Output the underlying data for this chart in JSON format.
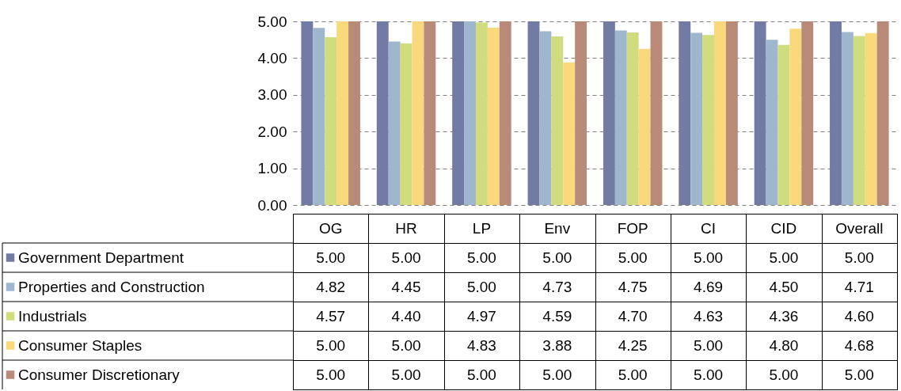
{
  "chart_data": {
    "type": "bar",
    "categories": [
      "OG",
      "HR",
      "LP",
      "Env",
      "FOP",
      "CI",
      "CID",
      "Overall"
    ],
    "series": [
      {
        "name": "Government Department",
        "color": "#717ba3",
        "values": [
          5.0,
          5.0,
          5.0,
          5.0,
          5.0,
          5.0,
          5.0,
          5.0
        ],
        "value_labels": [
          "5.00",
          "5.00",
          "5.00",
          "5.00",
          "5.00",
          "5.00",
          "5.00",
          "5.00"
        ]
      },
      {
        "name": "Properties and Construction",
        "color": "#9fb6cf",
        "values": [
          4.82,
          4.45,
          5.0,
          4.73,
          4.75,
          4.69,
          4.5,
          4.71
        ],
        "value_labels": [
          "4.82",
          "4.45",
          "5.00",
          "4.73",
          "4.75",
          "4.69",
          "4.50",
          "4.71"
        ]
      },
      {
        "name": "Industrials",
        "color": "#d0dc7e",
        "values": [
          4.57,
          4.4,
          4.97,
          4.59,
          4.7,
          4.63,
          4.36,
          4.6
        ],
        "value_labels": [
          "4.57",
          "4.40",
          "4.97",
          "4.59",
          "4.70",
          "4.63",
          "4.36",
          "4.60"
        ]
      },
      {
        "name": "Consumer Staples",
        "color": "#fad97c",
        "values": [
          5.0,
          5.0,
          4.83,
          3.88,
          4.25,
          5.0,
          4.8,
          4.68
        ],
        "value_labels": [
          "5.00",
          "5.00",
          "4.83",
          "3.88",
          "4.25",
          "5.00",
          "4.80",
          "4.68"
        ]
      },
      {
        "name": "Consumer Discretionary",
        "color": "#b98a78",
        "values": [
          5.0,
          5.0,
          5.0,
          5.0,
          5.0,
          5.0,
          5.0,
          5.0
        ],
        "value_labels": [
          "5.00",
          "5.00",
          "5.00",
          "5.00",
          "5.00",
          "5.00",
          "5.00",
          "5.00"
        ]
      }
    ],
    "ylim": [
      0,
      5
    ],
    "yticks": [
      {
        "value": 0,
        "label": "0.00"
      },
      {
        "value": 1,
        "label": "1.00"
      },
      {
        "value": 2,
        "label": "2.00"
      },
      {
        "value": 3,
        "label": "3.00"
      },
      {
        "value": 4,
        "label": "4.00"
      },
      {
        "value": 5,
        "label": "5.00"
      }
    ],
    "grid": "y",
    "legend": "bottom left"
  }
}
